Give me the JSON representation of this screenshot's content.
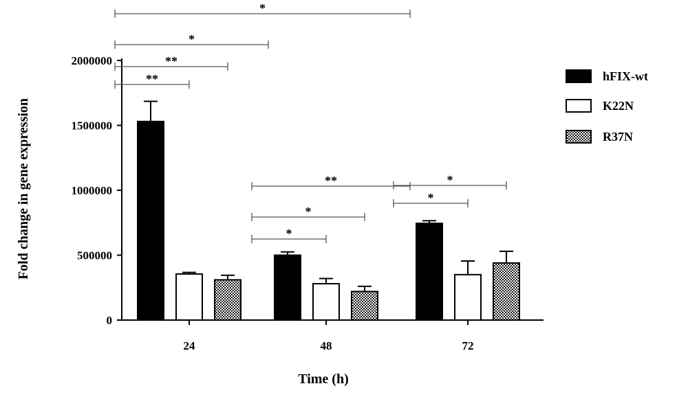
{
  "chart_data": {
    "type": "bar",
    "title": "",
    "xlabel": "Time (h)",
    "ylabel": "Fold change in gene expression",
    "categories": [
      "24",
      "48",
      "72"
    ],
    "ylim": [
      0,
      2000000
    ],
    "yticks": [
      0,
      500000,
      1000000,
      1500000,
      2000000
    ],
    "ytick_labels": [
      "0",
      "500000",
      "1000000",
      "1500000",
      "2000000"
    ],
    "series": [
      {
        "name": "hFIX-wt",
        "pattern": "solid",
        "color": "#000000",
        "values": [
          1530000,
          500000,
          745000
        ],
        "errors": [
          155000,
          25000,
          20000
        ]
      },
      {
        "name": "K22N",
        "pattern": "open",
        "color": "#ffffff",
        "values": [
          355000,
          280000,
          350000
        ],
        "errors": [
          12000,
          40000,
          105000
        ]
      },
      {
        "name": "R37N",
        "pattern": "checker",
        "color": "#888888",
        "values": [
          310000,
          220000,
          440000
        ],
        "errors": [
          35000,
          40000,
          90000
        ]
      }
    ],
    "legend_position": "right",
    "grid": false,
    "significance": [
      {
        "from": [
          0,
          0
        ],
        "to": [
          2,
          0
        ],
        "label": "*"
      },
      {
        "from": [
          0,
          0
        ],
        "to": [
          1,
          0
        ],
        "label": "*"
      },
      {
        "from": [
          0,
          0
        ],
        "to": [
          0,
          2
        ],
        "label": "**"
      },
      {
        "from": [
          0,
          0
        ],
        "to": [
          0,
          1
        ],
        "label": "**"
      },
      {
        "from": [
          1,
          0
        ],
        "to": [
          2,
          0
        ],
        "label": "**"
      },
      {
        "from": [
          1,
          0
        ],
        "to": [
          1,
          2
        ],
        "label": "*"
      },
      {
        "from": [
          1,
          0
        ],
        "to": [
          1,
          1
        ],
        "label": "*"
      },
      {
        "from": [
          2,
          0
        ],
        "to": [
          2,
          2
        ],
        "label": "*"
      },
      {
        "from": [
          2,
          0
        ],
        "to": [
          2,
          1
        ],
        "label": "*"
      }
    ]
  }
}
